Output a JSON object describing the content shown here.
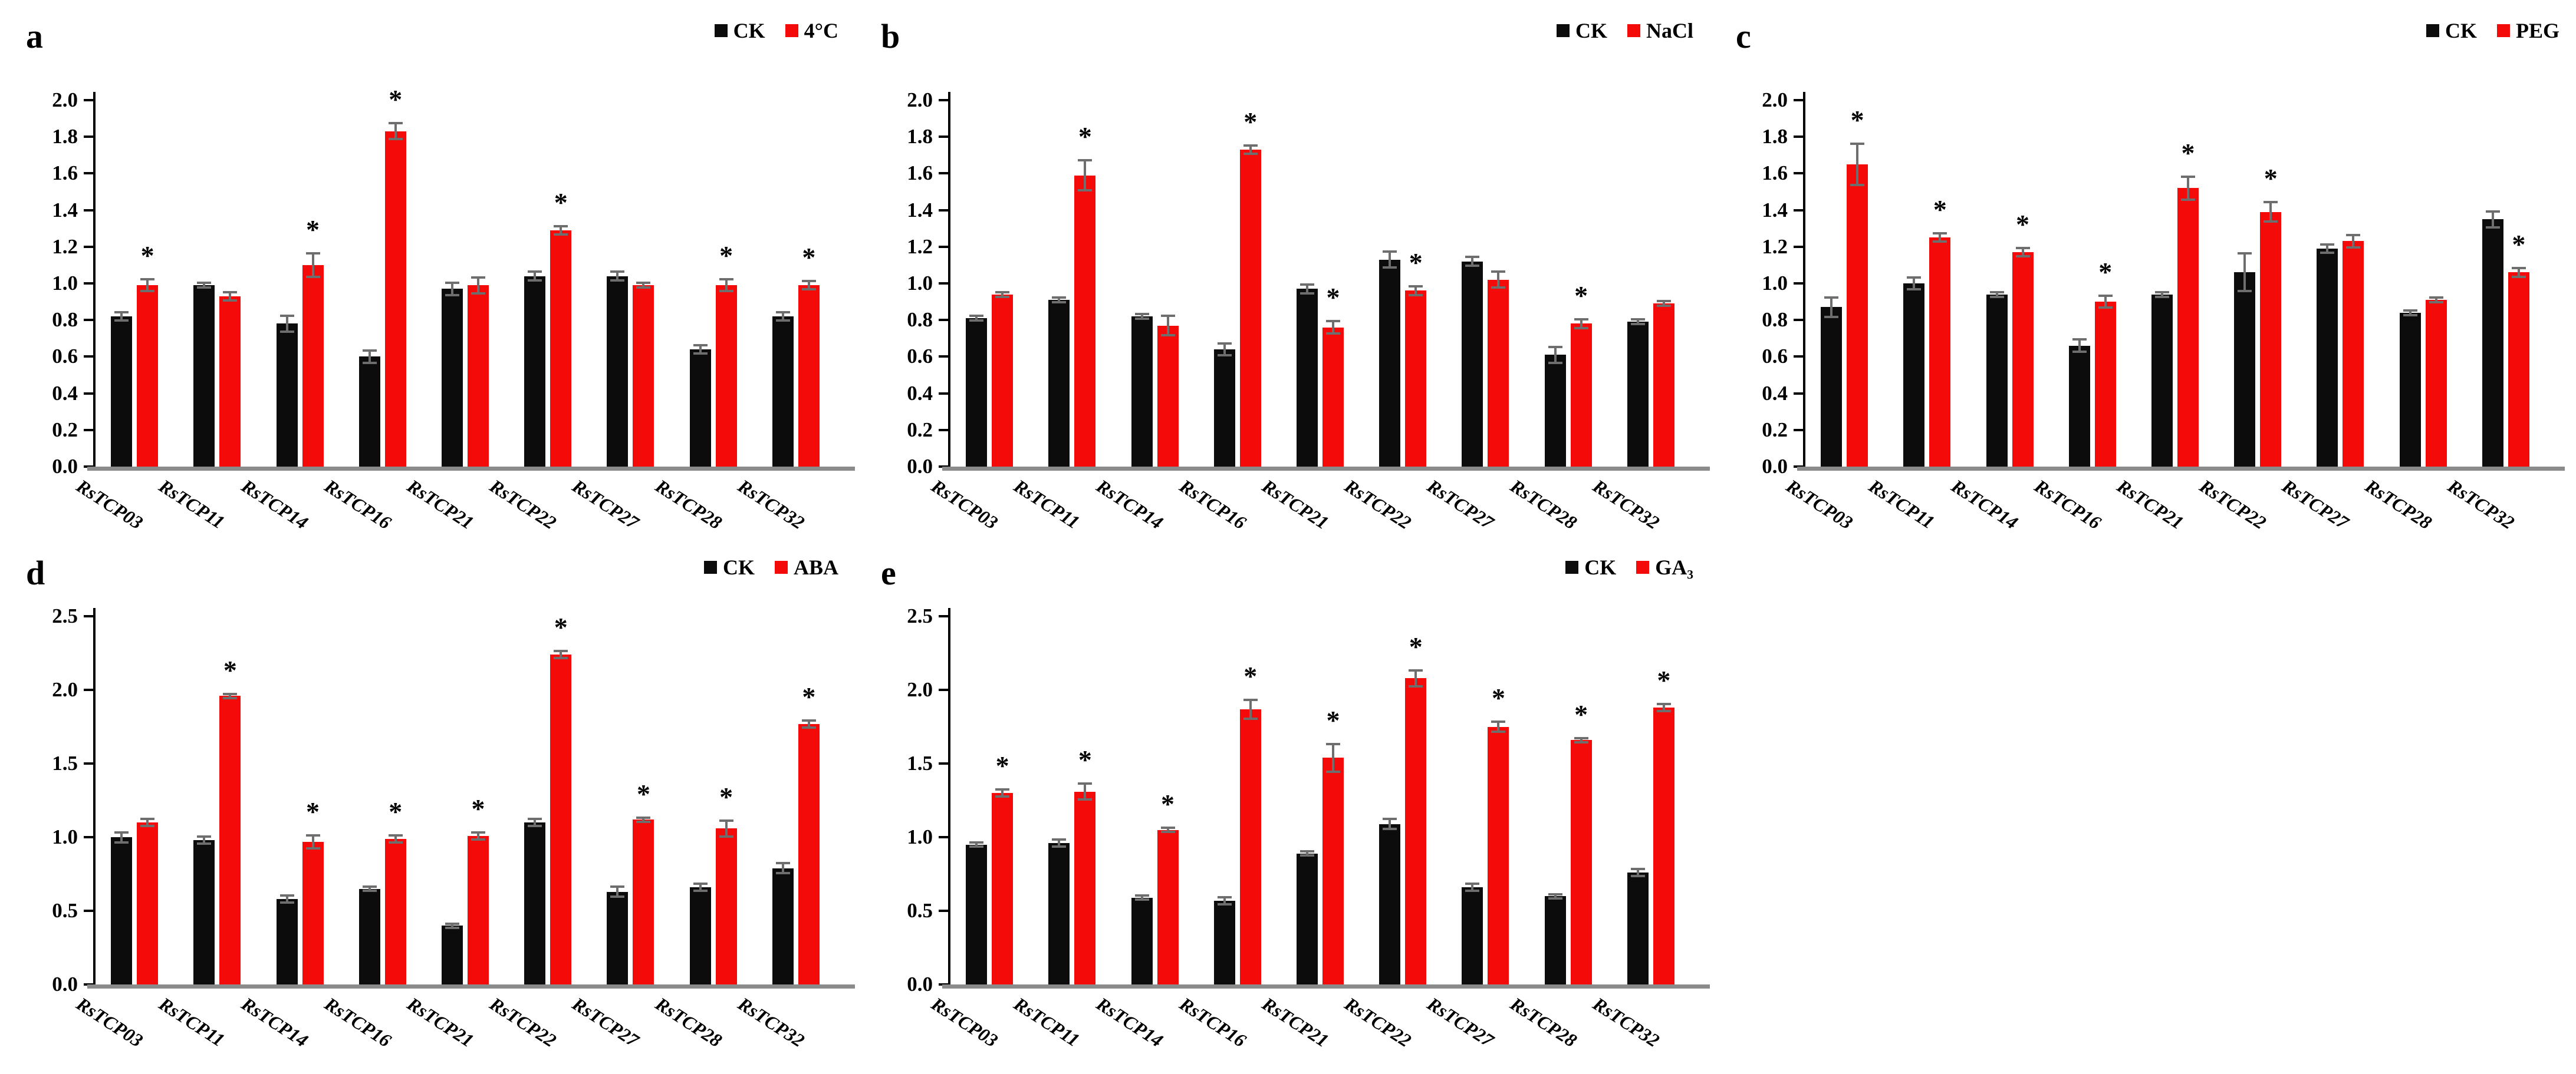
{
  "figure_title": "",
  "significance_marker": "*",
  "colors": {
    "ck_bar": "#0c0c0c",
    "treatment_bar": "#f50a0a",
    "error_bar": "#6e6e6e",
    "axis": "#000000",
    "baseline": "#8b8b8b",
    "background": "#ffffff",
    "text": "#000000"
  },
  "chart_data": [
    {
      "type": "bar",
      "panel_label": "a",
      "title": "",
      "xlabel": "",
      "ylabel": "",
      "ylim": [
        0,
        2.0
      ],
      "ytick_labels": [
        "2.0",
        "1.8",
        "1.6",
        "1.4",
        "1.2",
        "1.0",
        "0.8",
        "0.6",
        "0.4",
        "0.2",
        "0.0"
      ],
      "grid": false,
      "legend_position": "top-right",
      "categories": [
        "RsTCP03",
        "RsTCP11",
        "RsTCP14",
        "RsTCP16",
        "RsTCP21",
        "RsTCP22",
        "RsTCP27",
        "RsTCP28",
        "RsTCP32"
      ],
      "series": [
        {
          "name": "CK",
          "color": "#0c0c0c",
          "values": [
            0.82,
            0.99,
            0.78,
            0.6,
            0.97,
            1.04,
            1.04,
            0.64,
            0.82
          ],
          "errors": [
            0.02,
            0.01,
            0.04,
            0.03,
            0.03,
            0.02,
            0.02,
            0.02,
            0.02
          ]
        },
        {
          "name": "4°C",
          "color": "#f50a0a",
          "values": [
            0.99,
            0.93,
            1.1,
            1.83,
            0.99,
            1.29,
            0.99,
            0.99,
            0.99
          ],
          "errors": [
            0.03,
            0.02,
            0.06,
            0.04,
            0.04,
            0.02,
            0.01,
            0.03,
            0.02
          ]
        }
      ],
      "significant": [
        1,
        0,
        1,
        1,
        0,
        1,
        0,
        1,
        1
      ]
    },
    {
      "type": "bar",
      "panel_label": "b",
      "title": "",
      "xlabel": "",
      "ylabel": "",
      "ylim": [
        0,
        2.0
      ],
      "ytick_labels": [
        "2.0",
        "1.8",
        "1.6",
        "1.4",
        "1.2",
        "1.0",
        "0.8",
        "0.6",
        "0.4",
        "0.2",
        "0.0"
      ],
      "grid": false,
      "legend_position": "top-right",
      "categories": [
        "RsTCP03",
        "RsTCP11",
        "RsTCP14",
        "RsTCP16",
        "RsTCP21",
        "RsTCP22",
        "RsTCP27",
        "RsTCP28",
        "RsTCP32"
      ],
      "series": [
        {
          "name": "CK",
          "color": "#0c0c0c",
          "values": [
            0.81,
            0.91,
            0.82,
            0.64,
            0.97,
            1.13,
            1.12,
            0.61,
            0.79
          ],
          "errors": [
            0.01,
            0.01,
            0.01,
            0.03,
            0.02,
            0.04,
            0.02,
            0.04,
            0.01
          ]
        },
        {
          "name": "NaCl",
          "color": "#f50a0a",
          "values": [
            0.94,
            1.59,
            0.77,
            1.73,
            0.76,
            0.96,
            1.02,
            0.78,
            0.89
          ],
          "errors": [
            0.01,
            0.08,
            0.05,
            0.02,
            0.03,
            0.02,
            0.04,
            0.02,
            0.01
          ]
        }
      ],
      "significant": [
        0,
        1,
        0,
        1,
        1,
        1,
        0,
        1,
        0
      ]
    },
    {
      "type": "bar",
      "panel_label": "c",
      "title": "",
      "xlabel": "",
      "ylabel": "",
      "ylim": [
        0,
        2.0
      ],
      "ytick_labels": [
        "2.0",
        "1.8",
        "1.6",
        "1.4",
        "1.2",
        "1.0",
        "0.8",
        "0.6",
        "0.4",
        "0.2",
        "0.0"
      ],
      "grid": false,
      "legend_position": "top-right",
      "categories": [
        "RsTCP03",
        "RsTCP11",
        "RsTCP14",
        "RsTCP16",
        "RsTCP21",
        "RsTCP22",
        "RsTCP27",
        "RsTCP28",
        "RsTCP32"
      ],
      "series": [
        {
          "name": "CK",
          "color": "#0c0c0c",
          "values": [
            0.87,
            1.0,
            0.94,
            0.66,
            0.94,
            1.06,
            1.19,
            0.84,
            1.35
          ],
          "errors": [
            0.05,
            0.03,
            0.01,
            0.03,
            0.01,
            0.1,
            0.02,
            0.01,
            0.04
          ]
        },
        {
          "name": "PEG",
          "color": "#f50a0a",
          "values": [
            1.65,
            1.25,
            1.17,
            0.9,
            1.52,
            1.39,
            1.23,
            0.91,
            1.06
          ],
          "errors": [
            0.11,
            0.02,
            0.02,
            0.03,
            0.06,
            0.05,
            0.03,
            0.01,
            0.02
          ]
        }
      ],
      "significant": [
        1,
        1,
        1,
        1,
        1,
        1,
        0,
        0,
        1
      ]
    },
    {
      "type": "bar",
      "panel_label": "d",
      "title": "",
      "xlabel": "",
      "ylabel": "",
      "ylim": [
        0,
        2.5
      ],
      "ytick_labels": [
        "2.5",
        "2.0",
        "1.5",
        "1.0",
        "0.5",
        "0.0"
      ],
      "grid": false,
      "legend_position": "top-right",
      "categories": [
        "RsTCP03",
        "RsTCP11",
        "RsTCP14",
        "RsTCP16",
        "RsTCP21",
        "RsTCP22",
        "RsTCP27",
        "RsTCP28",
        "RsTCP32"
      ],
      "series": [
        {
          "name": "CK",
          "color": "#0c0c0c",
          "values": [
            1.0,
            0.98,
            0.58,
            0.65,
            0.4,
            1.1,
            0.63,
            0.66,
            0.79
          ],
          "errors": [
            0.03,
            0.02,
            0.02,
            0.01,
            0.01,
            0.02,
            0.03,
            0.02,
            0.03
          ]
        },
        {
          "name": "ABA",
          "color": "#f50a0a",
          "values": [
            1.1,
            1.96,
            0.97,
            0.99,
            1.01,
            2.24,
            1.12,
            1.06,
            1.77
          ],
          "errors": [
            0.02,
            0.01,
            0.04,
            0.02,
            0.02,
            0.02,
            0.01,
            0.05,
            0.02
          ]
        }
      ],
      "significant": [
        0,
        1,
        1,
        1,
        1,
        1,
        1,
        1,
        1
      ]
    },
    {
      "type": "bar",
      "panel_label": "e",
      "title": "",
      "xlabel": "",
      "ylabel": "",
      "ylim": [
        0,
        2.5
      ],
      "ytick_labels": [
        "2.5",
        "2.0",
        "1.5",
        "1.0",
        "0.5",
        "0.0"
      ],
      "grid": false,
      "legend_position": "top-right",
      "categories": [
        "RsTCP03",
        "RsTCP11",
        "RsTCP14",
        "RsTCP16",
        "RsTCP21",
        "RsTCP22",
        "RsTCP27",
        "RsTCP28",
        "RsTCP32"
      ],
      "series": [
        {
          "name": "CK",
          "color": "#0c0c0c",
          "values": [
            0.95,
            0.96,
            0.59,
            0.57,
            0.89,
            1.09,
            0.66,
            0.6,
            0.76
          ],
          "errors": [
            0.01,
            0.02,
            0.01,
            0.02,
            0.01,
            0.03,
            0.02,
            0.01,
            0.02
          ]
        },
        {
          "name": "GA₃",
          "color": "#f50a0a",
          "values": [
            1.3,
            1.31,
            1.05,
            1.87,
            1.54,
            2.08,
            1.75,
            1.66,
            1.88
          ],
          "errors": [
            0.02,
            0.05,
            0.01,
            0.06,
            0.09,
            0.05,
            0.03,
            0.01,
            0.02
          ]
        }
      ],
      "significant": [
        1,
        1,
        1,
        1,
        1,
        1,
        1,
        1,
        1
      ]
    }
  ]
}
